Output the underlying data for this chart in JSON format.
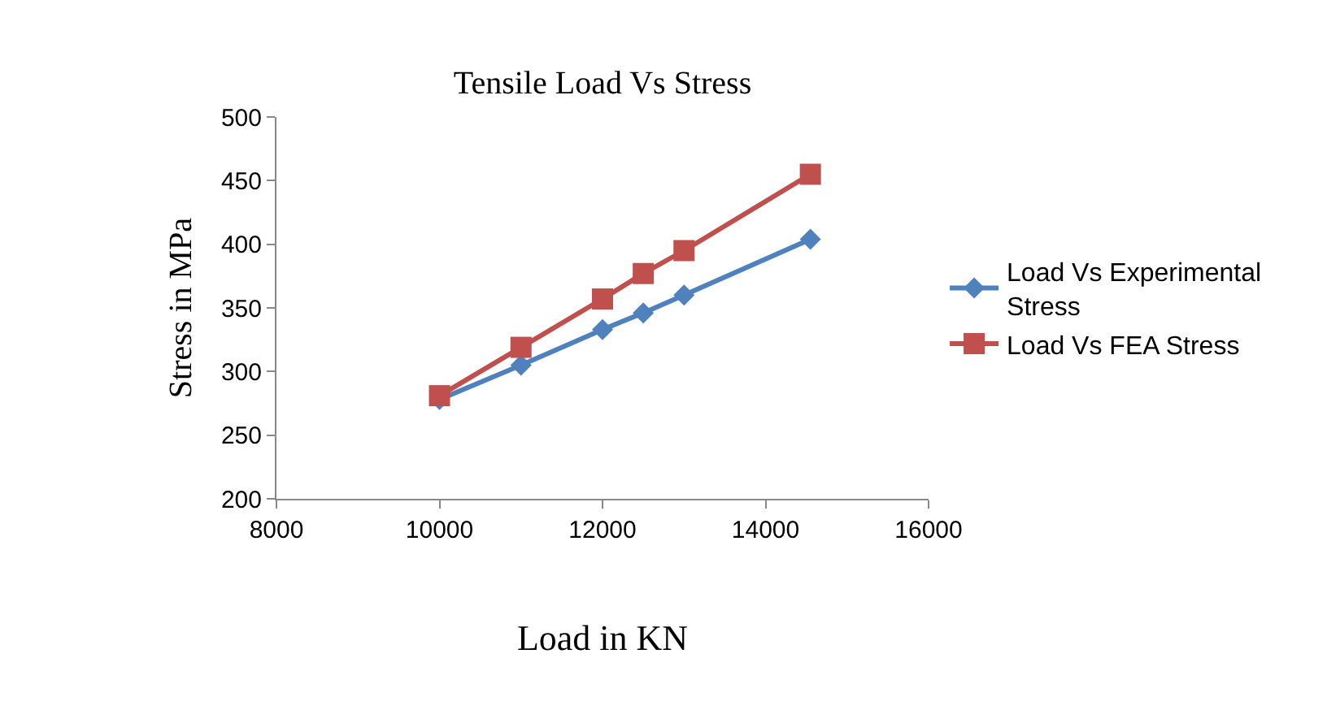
{
  "chart_data": {
    "type": "line",
    "title": "Tensile Load Vs Stress",
    "xlabel": "Load in KN",
    "ylabel": "Stress in MPa",
    "x": [
      10000,
      11000,
      12000,
      12500,
      13000,
      14550
    ],
    "series": [
      {
        "name": "Load Vs Experimental Stress",
        "color": "#4f81bd",
        "marker": "diamond",
        "values": [
          278,
          305,
          333,
          346,
          360,
          404
        ]
      },
      {
        "name": "Load Vs FEA Stress",
        "color": "#c0504d",
        "marker": "square",
        "values": [
          281,
          319,
          357,
          377,
          395,
          455
        ]
      }
    ],
    "xlim": [
      8000,
      16000
    ],
    "xticks": [
      8000,
      10000,
      12000,
      14000,
      16000
    ],
    "ylim": [
      200,
      500
    ],
    "yticks": [
      200,
      250,
      300,
      350,
      400,
      450,
      500
    ],
    "grid": false,
    "legend": "right"
  }
}
